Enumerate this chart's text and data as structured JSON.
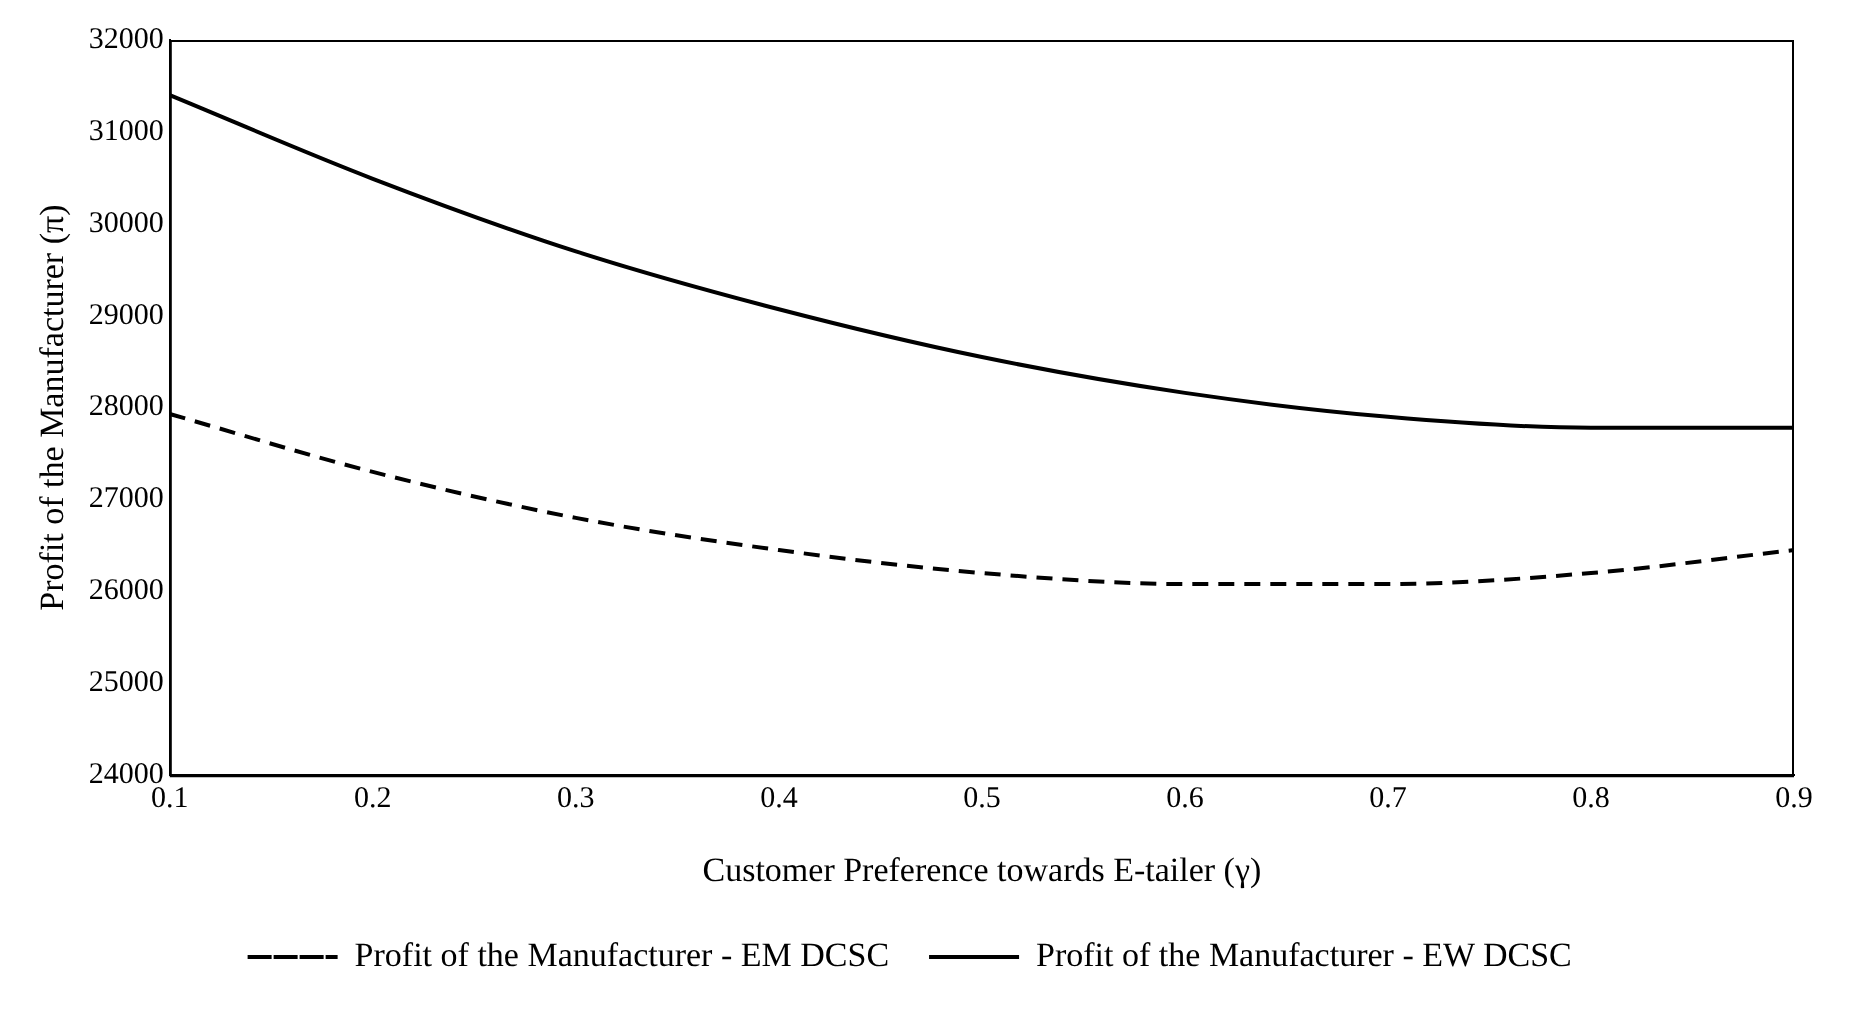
{
  "chart_data": {
    "type": "line",
    "xlabel": "Customer Preference towards E-tailer (γ)",
    "ylabel": "Profit of the Manufacturer (π)",
    "x": [
      0.1,
      0.2,
      0.3,
      0.4,
      0.5,
      0.6,
      0.7,
      0.8,
      0.9
    ],
    "series": [
      {
        "name": "Profit of the Manufacturer - EM DCSC",
        "color": "#000000",
        "line_style": "dashed",
        "values": [
          27930,
          27300,
          26800,
          26450,
          26200,
          26080,
          26080,
          26200,
          26450
        ]
      },
      {
        "name": "Profit of the Manufacturer - EW DCSC",
        "color": "#000000",
        "line_style": "solid",
        "values": [
          31400,
          30490,
          29700,
          29070,
          28550,
          28160,
          27900,
          27780,
          27780
        ]
      }
    ],
    "xlim": [
      0.1,
      0.9
    ],
    "xticks": [
      0.1,
      0.2,
      0.3,
      0.4,
      0.5,
      0.6,
      0.7,
      0.8,
      0.9
    ],
    "ylim": [
      24000,
      32000
    ],
    "yticks": [
      24000,
      25000,
      26000,
      27000,
      28000,
      29000,
      30000,
      31000,
      32000
    ],
    "grid": false,
    "legend": "bottom",
    "marker": "none"
  }
}
